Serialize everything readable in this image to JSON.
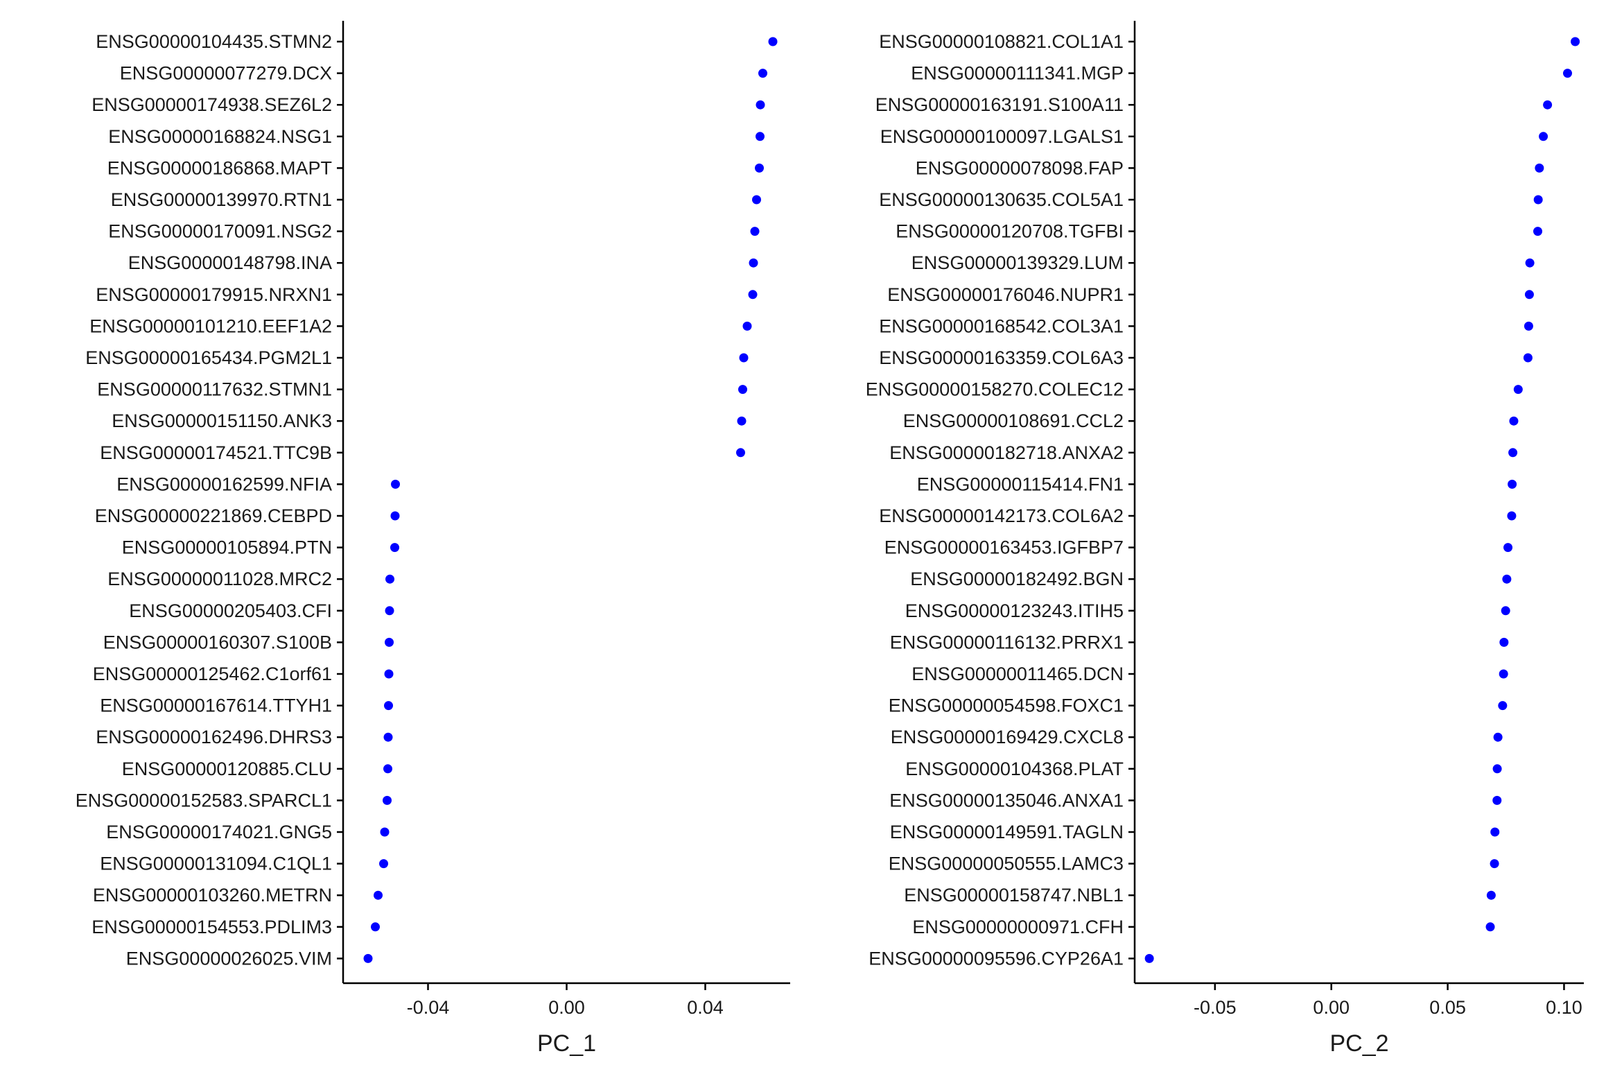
{
  "chart_data": [
    {
      "type": "scatter",
      "xlabel": "PC_1",
      "xlim": [
        -0.0645,
        0.0645
      ],
      "xticks": [
        -0.04,
        0.0,
        0.04
      ],
      "xtick_labels": [
        "-0.04",
        "0.00",
        "0.04"
      ],
      "point_color": "#0000ff",
      "grid": false,
      "legend": "none",
      "genes": [
        "ENSG00000104435.STMN2",
        "ENSG00000077279.DCX",
        "ENSG00000174938.SEZ6L2",
        "ENSG00000168824.NSG1",
        "ENSG00000186868.MAPT",
        "ENSG00000139970.RTN1",
        "ENSG00000170091.NSG2",
        "ENSG00000148798.INA",
        "ENSG00000179915.NRXN1",
        "ENSG00000101210.EEF1A2",
        "ENSG00000165434.PGM2L1",
        "ENSG00000117632.STMN1",
        "ENSG00000151150.ANK3",
        "ENSG00000174521.TTC9B",
        "ENSG00000162599.NFIA",
        "ENSG00000221869.CEBPD",
        "ENSG00000105894.PTN",
        "ENSG00000011028.MRC2",
        "ENSG00000205403.CFI",
        "ENSG00000160307.S100B",
        "ENSG00000125462.C1orf61",
        "ENSG00000167614.TTYH1",
        "ENSG00000162496.DHRS3",
        "ENSG00000120885.CLU",
        "ENSG00000152583.SPARCL1",
        "ENSG00000174021.GNG5",
        "ENSG00000131094.C1QL1",
        "ENSG00000103260.METRN",
        "ENSG00000154553.PDLIM3",
        "ENSG00000026025.VIM"
      ],
      "values": [
        0.0595,
        0.0566,
        0.0559,
        0.0558,
        0.0556,
        0.0548,
        0.0543,
        0.0539,
        0.0537,
        0.0521,
        0.0511,
        0.0508,
        0.0505,
        0.0502,
        -0.0494,
        -0.0495,
        -0.0496,
        -0.051,
        -0.0511,
        -0.0512,
        -0.0513,
        -0.0514,
        -0.0515,
        -0.0516,
        -0.0518,
        -0.0525,
        -0.0528,
        -0.0544,
        -0.0552,
        -0.0573
      ]
    },
    {
      "type": "scatter",
      "xlabel": "PC_2",
      "xlim": [
        -0.0845,
        0.1085
      ],
      "xticks": [
        -0.05,
        0.0,
        0.05,
        0.1
      ],
      "xtick_labels": [
        "-0.05",
        "0.00",
        "0.05",
        "0.10"
      ],
      "point_color": "#0000ff",
      "grid": false,
      "legend": "none",
      "genes": [
        "ENSG00000108821.COL1A1",
        "ENSG00000111341.MGP",
        "ENSG00000163191.S100A11",
        "ENSG00000100097.LGALS1",
        "ENSG00000078098.FAP",
        "ENSG00000130635.COL5A1",
        "ENSG00000120708.TGFBI",
        "ENSG00000139329.LUM",
        "ENSG00000176046.NUPR1",
        "ENSG00000168542.COL3A1",
        "ENSG00000163359.COL6A3",
        "ENSG00000158270.COLEC12",
        "ENSG00000108691.CCL2",
        "ENSG00000182718.ANXA2",
        "ENSG00000115414.FN1",
        "ENSG00000142173.COL6A2",
        "ENSG00000163453.IGFBP7",
        "ENSG00000182492.BGN",
        "ENSG00000123243.ITIH5",
        "ENSG00000116132.PRRX1",
        "ENSG00000011465.DCN",
        "ENSG00000054598.FOXC1",
        "ENSG00000169429.CXCL8",
        "ENSG00000104368.PLAT",
        "ENSG00000135046.ANXA1",
        "ENSG00000149591.TAGLN",
        "ENSG00000050555.LAMC3",
        "ENSG00000158747.NBL1",
        "ENSG00000000971.CFH",
        "ENSG00000095596.CYP26A1"
      ],
      "values": [
        0.1048,
        0.1015,
        0.0929,
        0.0911,
        0.0894,
        0.0889,
        0.0887,
        0.0853,
        0.0851,
        0.0848,
        0.0845,
        0.0803,
        0.0784,
        0.078,
        0.0777,
        0.0775,
        0.0759,
        0.0754,
        0.0749,
        0.0742,
        0.074,
        0.0736,
        0.0716,
        0.0713,
        0.0712,
        0.0703,
        0.0701,
        0.0687,
        0.0683,
        -0.0782
      ]
    }
  ]
}
